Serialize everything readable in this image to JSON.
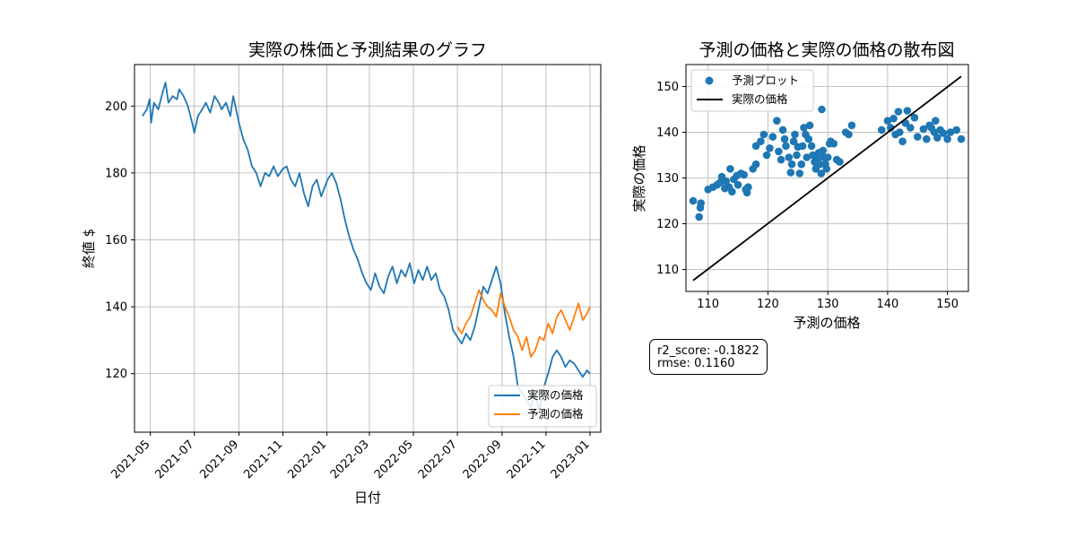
{
  "chart_data": [
    {
      "type": "line",
      "title": "実際の株価と予測結果のグラフ",
      "xlabel": "日付",
      "ylabel": "終値 $",
      "x_range": [
        "2021-04-09",
        "2023-01-16"
      ],
      "ylim": [
        102.5,
        212.4
      ],
      "grid": true,
      "legend_position": "lower-right",
      "xticks": [
        "2021-05",
        "2021-07",
        "2021-09",
        "2021-11",
        "2022-01",
        "2022-03",
        "2022-05",
        "2022-07",
        "2022-09",
        "2022-11",
        "2023-01"
      ],
      "yticks": [
        120,
        140,
        160,
        180,
        200
      ],
      "series": [
        {
          "name": "実際の価格",
          "color": "#1f77b4",
          "points": [
            [
              "2021-04-20",
              197
            ],
            [
              "2021-04-26",
              199
            ],
            [
              "2021-04-30",
              202
            ],
            [
              "2021-05-02",
              195
            ],
            [
              "2021-05-06",
              201
            ],
            [
              "2021-05-12",
              199
            ],
            [
              "2021-05-18",
              204
            ],
            [
              "2021-05-22",
              207
            ],
            [
              "2021-05-26",
              201
            ],
            [
              "2021-06-01",
              203
            ],
            [
              "2021-06-07",
              202
            ],
            [
              "2021-06-10",
              205
            ],
            [
              "2021-06-16",
              203
            ],
            [
              "2021-06-22",
              200
            ],
            [
              "2021-06-28",
              195
            ],
            [
              "2021-07-01",
              192
            ],
            [
              "2021-07-06",
              197
            ],
            [
              "2021-07-12",
              199
            ],
            [
              "2021-07-17",
              201
            ],
            [
              "2021-07-23",
              198
            ],
            [
              "2021-07-29",
              203
            ],
            [
              "2021-08-04",
              201
            ],
            [
              "2021-08-08",
              199
            ],
            [
              "2021-08-14",
              201
            ],
            [
              "2021-08-20",
              197
            ],
            [
              "2021-08-24",
              203
            ],
            [
              "2021-08-28",
              199
            ],
            [
              "2021-09-01",
              195
            ],
            [
              "2021-09-07",
              190
            ],
            [
              "2021-09-13",
              187
            ],
            [
              "2021-09-19",
              182
            ],
            [
              "2021-09-25",
              180
            ],
            [
              "2021-10-01",
              176
            ],
            [
              "2021-10-07",
              180
            ],
            [
              "2021-10-13",
              179
            ],
            [
              "2021-10-19",
              182
            ],
            [
              "2021-10-25",
              179
            ],
            [
              "2021-10-31",
              181
            ],
            [
              "2021-11-06",
              182
            ],
            [
              "2021-11-12",
              178
            ],
            [
              "2021-11-18",
              176
            ],
            [
              "2021-11-24",
              180
            ],
            [
              "2021-11-30",
              174
            ],
            [
              "2021-12-06",
              170
            ],
            [
              "2021-12-12",
              176
            ],
            [
              "2021-12-18",
              178
            ],
            [
              "2021-12-24",
              173
            ],
            [
              "2022-01-02",
              178
            ],
            [
              "2022-01-08",
              180
            ],
            [
              "2022-01-14",
              177
            ],
            [
              "2022-01-20",
              172
            ],
            [
              "2022-01-26",
              166
            ],
            [
              "2022-02-01",
              161
            ],
            [
              "2022-02-07",
              157
            ],
            [
              "2022-02-13",
              154
            ],
            [
              "2022-02-19",
              150
            ],
            [
              "2022-02-25",
              147
            ],
            [
              "2022-03-03",
              145
            ],
            [
              "2022-03-09",
              150
            ],
            [
              "2022-03-15",
              146
            ],
            [
              "2022-03-21",
              144
            ],
            [
              "2022-03-27",
              149
            ],
            [
              "2022-04-02",
              152
            ],
            [
              "2022-04-08",
              147
            ],
            [
              "2022-04-14",
              151
            ],
            [
              "2022-04-20",
              149
            ],
            [
              "2022-04-26",
              153
            ],
            [
              "2022-05-02",
              147
            ],
            [
              "2022-05-08",
              151
            ],
            [
              "2022-05-14",
              148
            ],
            [
              "2022-05-20",
              152
            ],
            [
              "2022-05-26",
              148
            ],
            [
              "2022-06-01",
              150
            ],
            [
              "2022-06-07",
              145
            ],
            [
              "2022-06-13",
              143
            ],
            [
              "2022-06-19",
              139
            ],
            [
              "2022-06-25",
              133
            ],
            [
              "2022-07-01",
              131
            ],
            [
              "2022-07-07",
              129
            ],
            [
              "2022-07-13",
              132
            ],
            [
              "2022-07-19",
              130
            ],
            [
              "2022-07-25",
              134
            ],
            [
              "2022-07-31",
              140
            ],
            [
              "2022-08-06",
              146
            ],
            [
              "2022-08-12",
              144
            ],
            [
              "2022-08-18",
              148
            ],
            [
              "2022-08-24",
              152
            ],
            [
              "2022-08-30",
              147
            ],
            [
              "2022-09-05",
              138
            ],
            [
              "2022-09-11",
              131
            ],
            [
              "2022-09-17",
              125
            ],
            [
              "2022-09-23",
              116
            ],
            [
              "2022-09-29",
              114
            ],
            [
              "2022-10-05",
              112
            ],
            [
              "2022-10-11",
              110
            ],
            [
              "2022-10-17",
              114
            ],
            [
              "2022-10-23",
              109
            ],
            [
              "2022-10-29",
              116
            ],
            [
              "2022-11-04",
              120
            ],
            [
              "2022-11-10",
              125
            ],
            [
              "2022-11-16",
              127
            ],
            [
              "2022-11-22",
              125
            ],
            [
              "2022-11-28",
              122
            ],
            [
              "2022-12-04",
              124
            ],
            [
              "2022-12-10",
              123
            ],
            [
              "2022-12-16",
              121
            ],
            [
              "2022-12-22",
              119
            ],
            [
              "2022-12-28",
              121
            ],
            [
              "2023-01-01",
              120
            ]
          ]
        },
        {
          "name": "予測の価格",
          "color": "#ff7f0e",
          "points": [
            [
              "2022-07-01",
              134
            ],
            [
              "2022-07-07",
              132
            ],
            [
              "2022-07-13",
              135
            ],
            [
              "2022-07-19",
              137
            ],
            [
              "2022-07-25",
              141
            ],
            [
              "2022-07-31",
              145
            ],
            [
              "2022-08-06",
              142
            ],
            [
              "2022-08-12",
              140
            ],
            [
              "2022-08-18",
              139
            ],
            [
              "2022-08-24",
              137
            ],
            [
              "2022-08-30",
              144
            ],
            [
              "2022-09-05",
              140
            ],
            [
              "2022-09-11",
              137
            ],
            [
              "2022-09-17",
              133
            ],
            [
              "2022-09-23",
              131
            ],
            [
              "2022-09-29",
              127
            ],
            [
              "2022-10-05",
              131
            ],
            [
              "2022-10-11",
              125
            ],
            [
              "2022-10-17",
              127
            ],
            [
              "2022-10-23",
              131
            ],
            [
              "2022-10-29",
              130
            ],
            [
              "2022-11-04",
              135
            ],
            [
              "2022-11-10",
              132
            ],
            [
              "2022-11-16",
              137
            ],
            [
              "2022-11-22",
              139
            ],
            [
              "2022-11-28",
              136
            ],
            [
              "2022-12-04",
              133
            ],
            [
              "2022-12-10",
              137
            ],
            [
              "2022-12-16",
              141
            ],
            [
              "2022-12-22",
              136
            ],
            [
              "2022-12-28",
              138
            ],
            [
              "2023-01-01",
              140
            ]
          ]
        }
      ]
    },
    {
      "type": "scatter",
      "title": "予測の価格と実際の価格の散布図",
      "xlabel": "予測の価格",
      "ylabel": "実際の価格",
      "xlim": [
        106.3,
        153.5
      ],
      "ylim": [
        105.2,
        154.8
      ],
      "grid": true,
      "legend_position": "top-left",
      "xticks": [
        110,
        120,
        130,
        140,
        150
      ],
      "yticks": [
        110,
        120,
        130,
        140,
        150
      ],
      "series": [
        {
          "name": "予測プロット",
          "color": "#1f77b4",
          "points": [
            [
              107.5,
              125
            ],
            [
              108.5,
              121.5
            ],
            [
              108.7,
              123.5
            ],
            [
              108.8,
              124.5
            ],
            [
              110,
              127.5
            ],
            [
              110.8,
              128
            ],
            [
              111.5,
              128.5
            ],
            [
              112,
              129
            ],
            [
              112.3,
              130.3
            ],
            [
              112.8,
              127.7
            ],
            [
              113,
              129.3
            ],
            [
              113.5,
              128
            ],
            [
              113.7,
              132
            ],
            [
              114,
              127
            ],
            [
              114.3,
              129.7
            ],
            [
              114.8,
              130.5
            ],
            [
              115,
              128.5
            ],
            [
              115.5,
              131
            ],
            [
              116,
              130.7
            ],
            [
              116.3,
              127.5
            ],
            [
              116.5,
              126.8
            ],
            [
              116.7,
              128
            ],
            [
              117.5,
              132
            ],
            [
              118,
              133
            ],
            [
              118,
              137
            ],
            [
              118.8,
              138
            ],
            [
              119.3,
              139.5
            ],
            [
              119.8,
              135
            ],
            [
              120.3,
              136.5
            ],
            [
              120.8,
              139
            ],
            [
              121.5,
              142.5
            ],
            [
              121.8,
              135.8
            ],
            [
              122.2,
              134
            ],
            [
              122.5,
              140.5
            ],
            [
              122.8,
              138.5
            ],
            [
              123,
              137
            ],
            [
              123.5,
              134.5
            ],
            [
              123.8,
              131.2
            ],
            [
              124,
              133
            ],
            [
              124.3,
              138
            ],
            [
              124.5,
              139.5
            ],
            [
              124.8,
              135
            ],
            [
              125,
              136.8
            ],
            [
              125.3,
              131
            ],
            [
              125.6,
              133
            ],
            [
              125.8,
              137
            ],
            [
              126,
              141
            ],
            [
              126.3,
              139.5
            ],
            [
              126.5,
              134.5
            ],
            [
              126.8,
              138.5
            ],
            [
              127,
              141.5
            ],
            [
              127.3,
              137
            ],
            [
              127.5,
              135
            ],
            [
              127.8,
              133.5
            ],
            [
              128,
              132
            ],
            [
              128.3,
              134
            ],
            [
              128.5,
              135.5
            ],
            [
              128.7,
              133
            ],
            [
              128.9,
              131
            ],
            [
              129,
              145
            ],
            [
              129.2,
              136
            ],
            [
              129.4,
              134.5
            ],
            [
              129.6,
              133
            ],
            [
              129.8,
              132
            ],
            [
              130,
              134.5
            ],
            [
              130.3,
              137.5
            ],
            [
              130.5,
              138
            ],
            [
              131,
              137.5
            ],
            [
              131.5,
              134
            ],
            [
              132,
              133.5
            ],
            [
              133,
              140
            ],
            [
              133.5,
              139.5
            ],
            [
              134,
              141.5
            ],
            [
              139,
              140.5
            ],
            [
              140,
              142.5
            ],
            [
              140.5,
              141
            ],
            [
              141,
              143
            ],
            [
              141.3,
              139.5
            ],
            [
              141.8,
              144.5
            ],
            [
              142,
              140
            ],
            [
              142.5,
              138
            ],
            [
              143,
              142
            ],
            [
              143.3,
              144.7
            ],
            [
              143.8,
              141
            ],
            [
              144.5,
              143.2
            ],
            [
              145,
              139
            ],
            [
              146,
              140.7
            ],
            [
              146.5,
              138.5
            ],
            [
              147,
              141.5
            ],
            [
              147.3,
              141
            ],
            [
              147.8,
              140
            ],
            [
              148,
              142.5
            ],
            [
              148.3,
              138.8
            ],
            [
              148.8,
              140.5
            ],
            [
              149.3,
              139.8
            ],
            [
              150,
              138.5
            ],
            [
              150.5,
              140
            ],
            [
              151.5,
              140.5
            ],
            [
              152.3,
              138.5
            ]
          ]
        },
        {
          "name": "実際の価格",
          "color": "#000000",
          "line": [
            [
              107.5,
              107.6
            ],
            [
              152.3,
              152.2
            ]
          ]
        }
      ]
    }
  ],
  "metrics": {
    "r2_line": "r2_score: -0.1822",
    "rmse_line": "rmse: 0.1160"
  }
}
